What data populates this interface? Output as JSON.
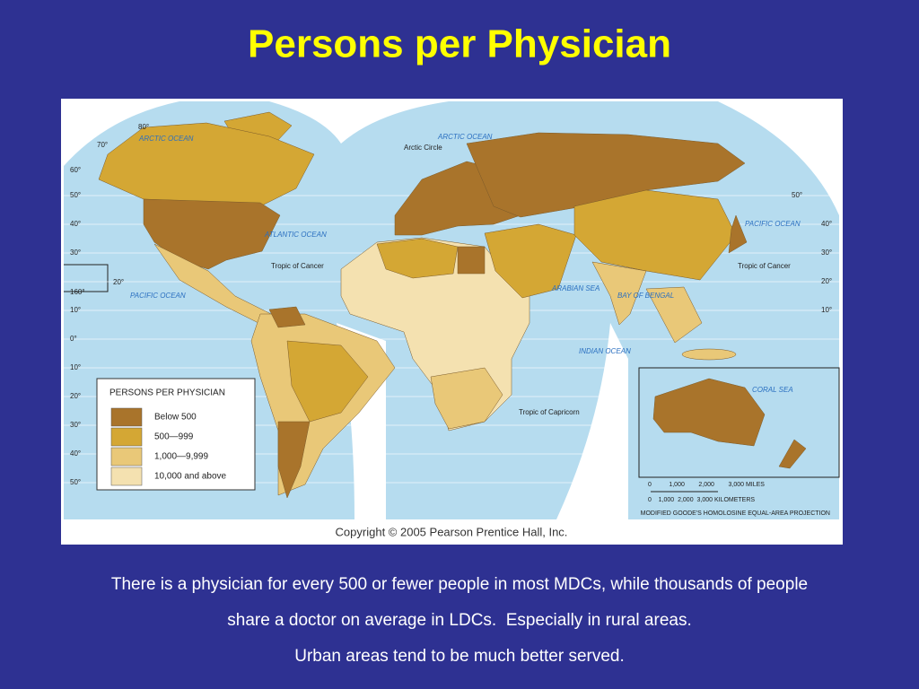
{
  "title": "Persons per Physician",
  "map": {
    "legend": {
      "title": "PERSONS PER PHYSICIAN",
      "items": [
        {
          "label": "Below 500",
          "color": "#a9742b"
        },
        {
          "label": "500—999",
          "color": "#d4a734"
        },
        {
          "label": "1,000—9,999",
          "color": "#e9c878"
        },
        {
          "label": "10,000 and above",
          "color": "#f4e1b0"
        }
      ]
    },
    "labels": {
      "arctic_ocean_left": "ARCTIC OCEAN",
      "arctic_ocean_right": "ARCTIC OCEAN",
      "arctic_circle": "Arctic Circle",
      "atlantic_ocean": "ATLANTIC OCEAN",
      "pacific_ocean_left": "PACIFIC OCEAN",
      "pacific_ocean_right": "PACIFIC OCEAN",
      "tropic_of_cancer_left": "Tropic of Cancer",
      "tropic_of_cancer_right": "Tropic of Cancer",
      "tropic_of_capricorn": "Tropic of Capricorn",
      "arabian_sea": "ARABIAN SEA",
      "bay_of_bengal": "BAY OF BENGAL",
      "indian_ocean": "INDIAN OCEAN",
      "coral_sea": "CORAL SEA"
    },
    "left_degrees": [
      "80°",
      "70°",
      "60°",
      "50°",
      "40°",
      "30°",
      "20°",
      "160°",
      "10°",
      "0°",
      "10°",
      "20°",
      "30°",
      "40°",
      "50°"
    ],
    "right_degrees": [
      "50°",
      "40°",
      "30°",
      "20°",
      "10°"
    ],
    "scale_miles": "0          1,000        2,000        3,000 MILES",
    "scale_km": "0    1,000  2,000  3,000 KILOMETERS",
    "projection": "MODIFIED GOODE'S HOMOLOSINE EQUAL-AREA PROJECTION",
    "copyright": "Copyright © 2005 Pearson Prentice Hall, Inc."
  },
  "caption": [
    "There is a physician for every 500 or fewer people in most MDCs, while thousands of people",
    "share a doctor on average in LDCs.  Especially in rural areas.",
    "Urban areas tend to be much better served."
  ]
}
